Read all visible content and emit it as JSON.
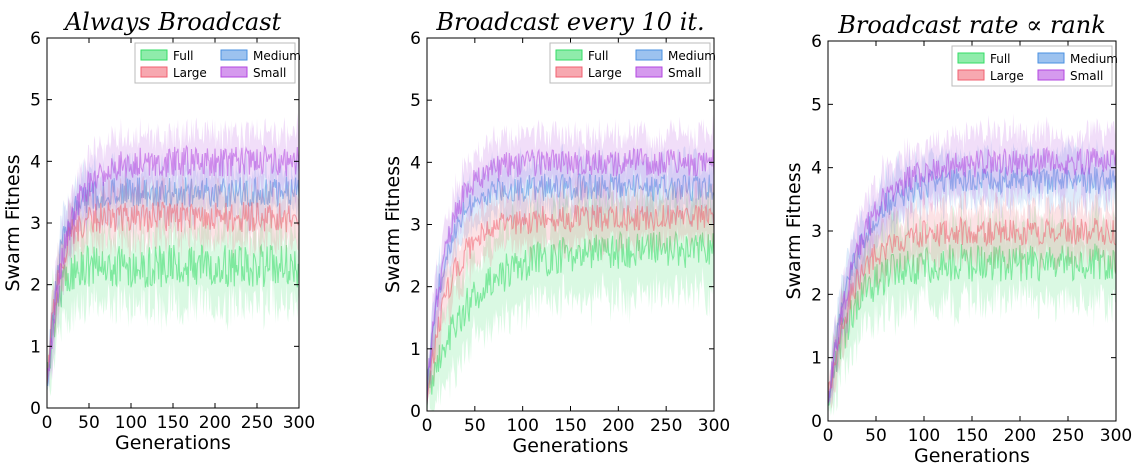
{
  "chart_data": [
    {
      "type": "line",
      "title": "Always Broadcast",
      "xlabel": "Generations",
      "ylabel": "Swarm Fitness",
      "xlim": [
        0,
        300
      ],
      "ylim": [
        0,
        6
      ],
      "xticks": [
        0,
        50,
        100,
        150,
        200,
        250,
        300
      ],
      "yticks": [
        0,
        1,
        2,
        3,
        4,
        5,
        6
      ],
      "grid": false,
      "legend_position": "top-right",
      "series": [
        {
          "name": "Full",
          "color": "#33dd66",
          "plateau": 2.3,
          "rise": 10,
          "noise": 0.35,
          "band": 0.6,
          "start": 0.3
        },
        {
          "name": "Medium",
          "color": "#4a90e2",
          "plateau": 3.5,
          "rise": 14,
          "noise": 0.25,
          "band": 0.4,
          "start": 0.3
        },
        {
          "name": "Large",
          "color": "#f06070",
          "plateau": 3.1,
          "rise": 13,
          "noise": 0.25,
          "band": 0.4,
          "start": 0.3
        },
        {
          "name": "Small",
          "color": "#b347e0",
          "plateau": 4.0,
          "rise": 22,
          "noise": 0.25,
          "band": 0.45,
          "start": 0.3
        }
      ]
    },
    {
      "type": "line",
      "title": "Broadcast every 10 it.",
      "xlabel": "Generations",
      "ylabel": "Swarm Fitness",
      "xlim": [
        0,
        300
      ],
      "ylim": [
        0,
        6
      ],
      "xticks": [
        0,
        50,
        100,
        150,
        200,
        250,
        300
      ],
      "yticks": [
        0,
        1,
        2,
        3,
        4,
        5,
        6
      ],
      "grid": false,
      "legend_position": "top-right",
      "series": [
        {
          "name": "Full",
          "color": "#33dd66",
          "plateau": 2.6,
          "rise": 45,
          "noise": 0.3,
          "band": 0.7,
          "start": 0.3
        },
        {
          "name": "Medium",
          "color": "#4a90e2",
          "plateau": 3.6,
          "rise": 18,
          "noise": 0.22,
          "band": 0.4,
          "start": 0.3
        },
        {
          "name": "Large",
          "color": "#f06070",
          "plateau": 3.1,
          "rise": 25,
          "noise": 0.22,
          "band": 0.4,
          "start": 0.3
        },
        {
          "name": "Small",
          "color": "#b347e0",
          "plateau": 4.0,
          "rise": 20,
          "noise": 0.22,
          "band": 0.45,
          "start": 0.3
        }
      ]
    },
    {
      "type": "line",
      "title": "Broadcast rate ∝ rank",
      "xlabel": "Generations",
      "ylabel": "Swarm Fitness",
      "xlim": [
        0,
        300
      ],
      "ylim": [
        0,
        6
      ],
      "xticks": [
        0,
        50,
        100,
        150,
        200,
        250,
        300
      ],
      "yticks": [
        0,
        1,
        2,
        3,
        4,
        5,
        6
      ],
      "grid": false,
      "legend_position": "top-right",
      "series": [
        {
          "name": "Full",
          "color": "#33dd66",
          "plateau": 2.5,
          "rise": 25,
          "noise": 0.3,
          "band": 0.6,
          "start": 0.3
        },
        {
          "name": "Medium",
          "color": "#4a90e2",
          "plateau": 3.8,
          "rise": 28,
          "noise": 0.22,
          "band": 0.4,
          "start": 0.3
        },
        {
          "name": "Large",
          "color": "#f06070",
          "plateau": 3.0,
          "rise": 25,
          "noise": 0.22,
          "band": 0.4,
          "start": 0.3
        },
        {
          "name": "Small",
          "color": "#b347e0",
          "plateau": 4.1,
          "rise": 32,
          "noise": 0.22,
          "band": 0.45,
          "start": 0.3
        }
      ]
    }
  ]
}
